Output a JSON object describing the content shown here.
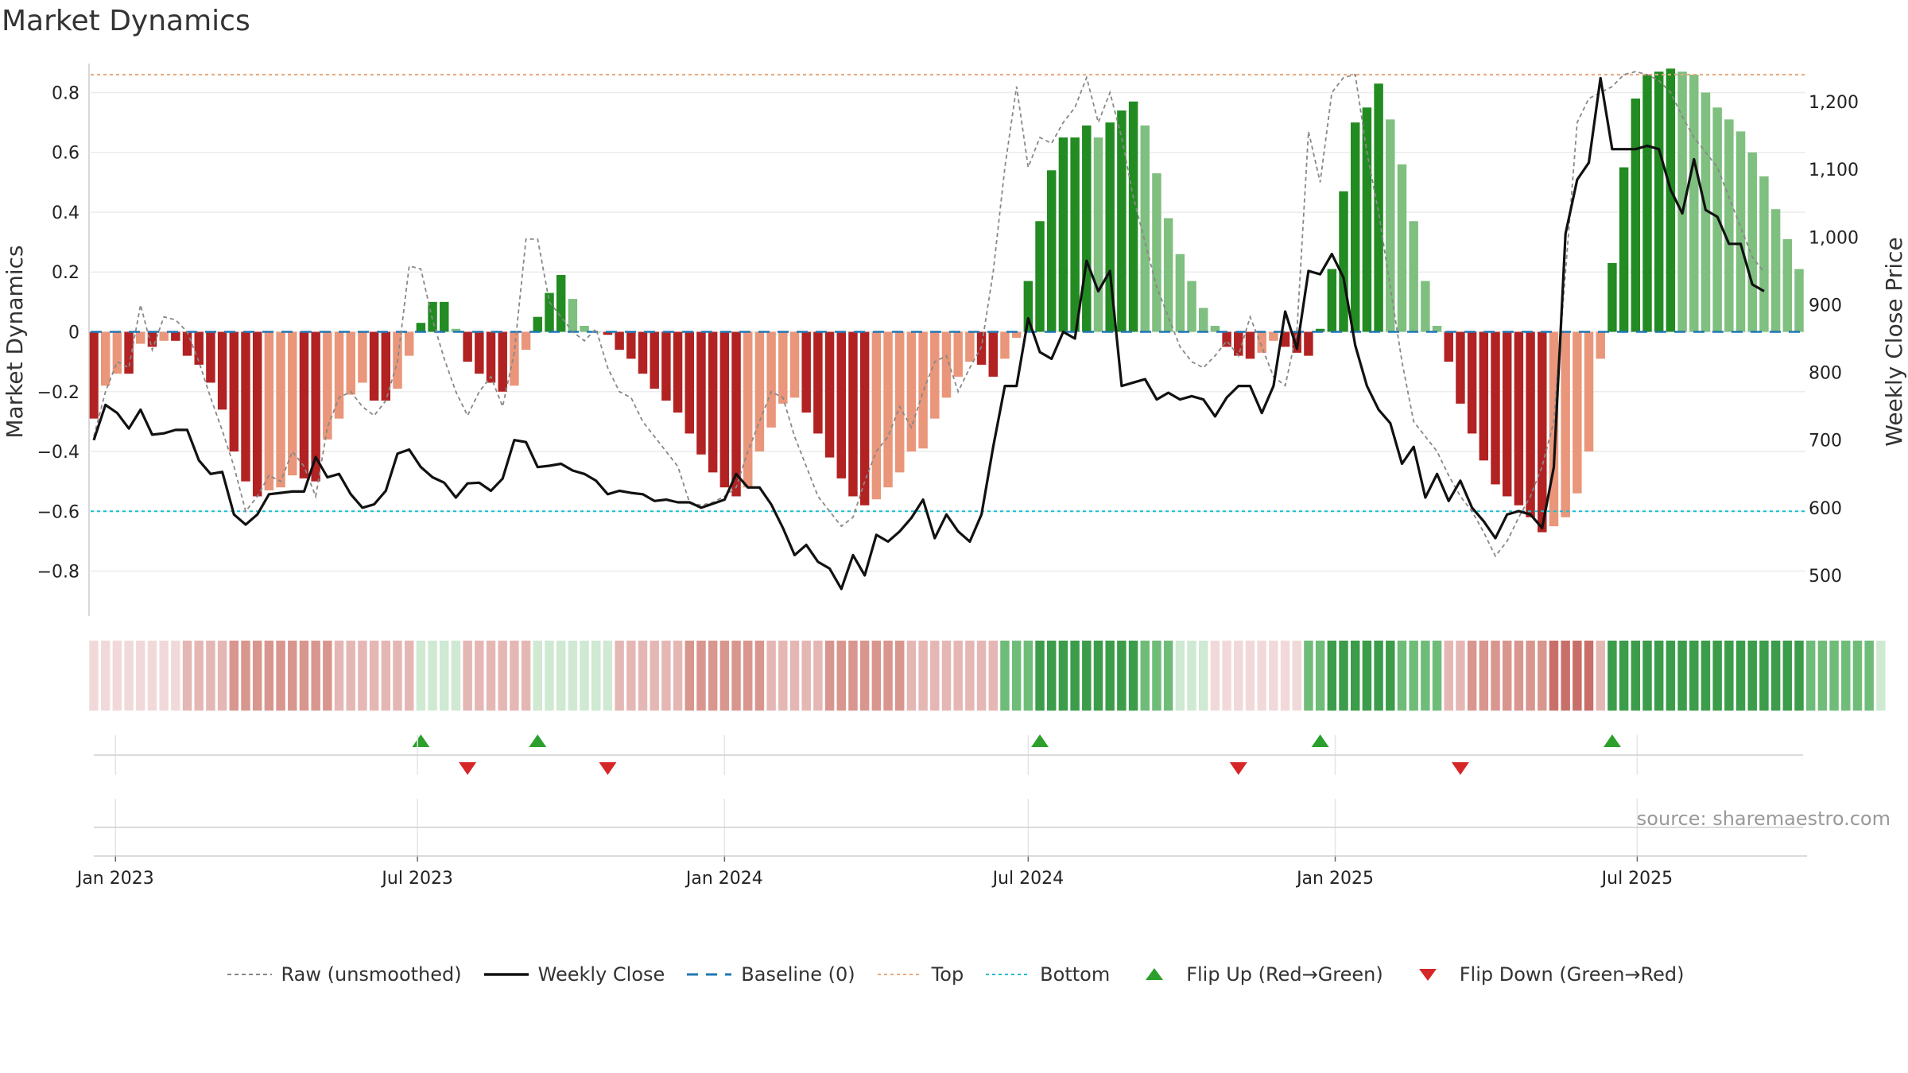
{
  "title": "Market Dynamics",
  "source": "source: sharemaestro.com",
  "legend": [
    {
      "key": "raw",
      "label": "Raw (unsmoothed)"
    },
    {
      "key": "close",
      "label": "Weekly Close"
    },
    {
      "key": "baseline",
      "label": "Baseline (0)"
    },
    {
      "key": "top",
      "label": "Top"
    },
    {
      "key": "bottom",
      "label": "Bottom"
    },
    {
      "key": "flipup",
      "label": "Flip Up (Red→Green)"
    },
    {
      "key": "flipdown",
      "label": "Flip Down (Green→Red)"
    }
  ],
  "colors": {
    "dark_green": "#228b22",
    "light_green": "#7fbf7f",
    "dark_red": "#b22222",
    "light_red": "#e9967a",
    "close": "#111111",
    "raw": "#888888",
    "baseline": "#1f77b4",
    "top": "#e8a87c",
    "bottom": "#17becf",
    "flip_up": "#2ca02c",
    "flip_down": "#d62728"
  },
  "chart_data": {
    "type": "bar",
    "ylabel": "Market Dynamics",
    "y2label": "Weekly Close Price",
    "ylim": [
      -0.95,
      0.95
    ],
    "y2lim": [
      440,
      1280
    ],
    "yticks": [
      -0.8,
      -0.6,
      -0.4,
      -0.2,
      0,
      0.2,
      0.4,
      0.6,
      0.8
    ],
    "ytick_labels": [
      "−0.8",
      "−0.6",
      "−0.4",
      "−0.2",
      "0",
      "0.2",
      "0.4",
      "0.6",
      "0.8"
    ],
    "y2ticks": [
      500,
      600,
      700,
      800,
      900,
      1000,
      1100,
      1200
    ],
    "y2tick_labels": [
      "500",
      "600",
      "700",
      "800",
      "900",
      "1,000",
      "1,100",
      "1,200"
    ],
    "xticks": [
      "Jan 2023",
      "Jul 2023",
      "Jan 2024",
      "Jul 2024",
      "Jan 2025",
      "Jul 2025"
    ],
    "x_start": "2022-12-19",
    "top_threshold": 0.86,
    "bottom_threshold": -0.6,
    "bars": [
      -0.29,
      -0.18,
      -0.14,
      -0.14,
      -0.04,
      -0.05,
      -0.03,
      -0.03,
      -0.08,
      -0.11,
      -0.17,
      -0.26,
      -0.4,
      -0.5,
      -0.55,
      -0.53,
      -0.52,
      -0.48,
      -0.49,
      -0.5,
      -0.36,
      -0.29,
      -0.21,
      -0.17,
      -0.23,
      -0.23,
      -0.19,
      -0.08,
      0.03,
      0.1,
      0.1,
      0.01,
      -0.1,
      -0.14,
      -0.17,
      -0.2,
      -0.18,
      -0.06,
      0.05,
      0.13,
      0.19,
      0.11,
      0.02,
      0.0,
      -0.01,
      -0.06,
      -0.09,
      -0.14,
      -0.19,
      -0.23,
      -0.27,
      -0.34,
      -0.41,
      -0.47,
      -0.52,
      -0.55,
      -0.52,
      -0.4,
      -0.32,
      -0.24,
      -0.22,
      -0.27,
      -0.34,
      -0.42,
      -0.49,
      -0.55,
      -0.58,
      -0.56,
      -0.52,
      -0.47,
      -0.4,
      -0.39,
      -0.29,
      -0.22,
      -0.15,
      -0.1,
      -0.11,
      -0.15,
      -0.09,
      -0.02,
      0.17,
      0.37,
      0.54,
      0.65,
      0.65,
      0.69,
      0.65,
      0.7,
      0.74,
      0.77,
      0.69,
      0.53,
      0.38,
      0.26,
      0.17,
      0.08,
      0.02,
      -0.05,
      -0.08,
      -0.09,
      -0.07,
      -0.03,
      -0.05,
      -0.07,
      -0.08,
      0.01,
      0.21,
      0.47,
      0.7,
      0.75,
      0.83,
      0.71,
      0.56,
      0.37,
      0.17,
      0.02,
      -0.1,
      -0.24,
      -0.34,
      -0.43,
      -0.51,
      -0.55,
      -0.58,
      -0.62,
      -0.67,
      -0.65,
      -0.62,
      -0.54,
      -0.4,
      -0.09,
      0.23,
      0.55,
      0.78,
      0.86,
      0.87,
      0.88,
      0.87,
      0.86,
      0.8,
      0.75,
      0.71,
      0.67,
      0.6,
      0.52,
      0.41,
      0.31,
      0.21
    ],
    "raw": [
      -0.35,
      -0.2,
      -0.1,
      -0.12,
      0.09,
      -0.06,
      0.05,
      0.04,
      0.0,
      -0.1,
      -0.22,
      -0.33,
      -0.45,
      -0.6,
      -0.55,
      -0.48,
      -0.5,
      -0.4,
      -0.45,
      -0.55,
      -0.32,
      -0.22,
      -0.2,
      -0.25,
      -0.28,
      -0.23,
      -0.1,
      0.22,
      0.21,
      0.04,
      -0.09,
      -0.2,
      -0.28,
      -0.2,
      -0.15,
      -0.25,
      -0.07,
      0.31,
      0.31,
      0.1,
      0.05,
      0.0,
      -0.03,
      0.01,
      -0.12,
      -0.2,
      -0.22,
      -0.3,
      -0.35,
      -0.4,
      -0.45,
      -0.57,
      -0.58,
      -0.57,
      -0.55,
      -0.52,
      -0.4,
      -0.3,
      -0.2,
      -0.22,
      -0.35,
      -0.45,
      -0.55,
      -0.6,
      -0.65,
      -0.62,
      -0.5,
      -0.4,
      -0.35,
      -0.25,
      -0.32,
      -0.2,
      -0.1,
      -0.08,
      -0.2,
      -0.12,
      -0.05,
      0.2,
      0.55,
      0.82,
      0.55,
      0.65,
      0.63,
      0.7,
      0.75,
      0.85,
      0.7,
      0.8,
      0.65,
      0.45,
      0.3,
      0.15,
      0.05,
      -0.05,
      -0.1,
      -0.12,
      -0.08,
      -0.03,
      -0.08,
      0.05,
      -0.05,
      -0.15,
      -0.18,
      0.0,
      0.67,
      0.5,
      0.8,
      0.85,
      0.86,
      0.6,
      0.4,
      0.15,
      -0.1,
      -0.3,
      -0.35,
      -0.4,
      -0.48,
      -0.55,
      -0.6,
      -0.67,
      -0.75,
      -0.7,
      -0.62,
      -0.55,
      -0.45,
      -0.3,
      0.2,
      0.7,
      0.78,
      0.8,
      0.82,
      0.86,
      0.87,
      0.86,
      0.84,
      0.8,
      0.72,
      0.65,
      0.6,
      0.55,
      0.45,
      0.35,
      0.25,
      0.2
    ],
    "close": [
      700,
      752,
      740,
      717,
      745,
      708,
      710,
      715,
      715,
      670,
      650,
      653,
      590,
      575,
      590,
      620,
      622,
      624,
      624,
      675,
      645,
      650,
      620,
      600,
      605,
      625,
      680,
      686,
      660,
      645,
      637,
      615,
      636,
      637,
      625,
      643,
      700,
      697,
      660,
      662,
      665,
      655,
      650,
      640,
      620,
      625,
      622,
      620,
      610,
      612,
      608,
      608,
      600,
      606,
      612,
      650,
      630,
      630,
      605,
      570,
      530,
      545,
      520,
      510,
      480,
      530,
      500,
      560,
      550,
      565,
      585,
      612,
      555,
      590,
      565,
      550,
      590,
      690,
      780,
      780,
      880,
      830,
      820,
      860,
      850,
      965,
      920,
      950,
      780,
      785,
      790,
      760,
      770,
      760,
      765,
      760,
      735,
      763,
      780,
      780,
      740,
      780,
      890,
      835,
      950,
      945,
      975,
      940,
      840,
      780,
      745,
      725,
      665,
      690,
      615,
      650,
      610,
      640,
      600,
      580,
      555,
      590,
      595,
      590,
      570,
      660,
      1005,
      1085,
      1110,
      1235,
      1130,
      1130,
      1130,
      1135,
      1130,
      1070,
      1035,
      1115,
      1040,
      1030,
      990,
      990,
      930,
      920
    ],
    "color_strip": [
      1,
      1,
      1,
      1,
      1,
      1,
      1,
      1,
      2,
      2,
      2,
      2,
      3,
      3,
      3,
      3,
      3,
      3,
      3,
      3,
      3,
      2,
      2,
      2,
      2,
      2,
      2,
      2,
      -1,
      -1,
      -1,
      -1,
      2,
      2,
      2,
      2,
      2,
      2,
      -1,
      -1,
      -1,
      -1,
      -1,
      -1,
      -1,
      2,
      2,
      2,
      2,
      2,
      2,
      3,
      3,
      3,
      3,
      3,
      3,
      3,
      2,
      2,
      2,
      2,
      2,
      3,
      3,
      3,
      3,
      3,
      3,
      3,
      2,
      2,
      2,
      2,
      2,
      2,
      2,
      2,
      -2,
      -2,
      -2,
      -3,
      -3,
      -3,
      -3,
      -3,
      -3,
      -3,
      -3,
      -3,
      -2,
      -2,
      -2,
      -1,
      -1,
      -1,
      1,
      1,
      1,
      1,
      1,
      1,
      1,
      1,
      -2,
      -2,
      -3,
      -3,
      -3,
      -3,
      -3,
      -3,
      -2,
      -2,
      -2,
      -2,
      2,
      2,
      3,
      3,
      3,
      3,
      3,
      3,
      3,
      4,
      4,
      4,
      4,
      2,
      -3,
      -3,
      -3,
      -3,
      -3,
      -3,
      -3,
      -3,
      -3,
      -3,
      -3,
      -3,
      -3,
      -3,
      -3,
      -3,
      -3,
      -2,
      -2,
      -2,
      -2,
      -2,
      -2,
      -1
    ],
    "flip_up": [
      28,
      38,
      81,
      105,
      130
    ],
    "flip_down": [
      32,
      44,
      98,
      117
    ]
  }
}
